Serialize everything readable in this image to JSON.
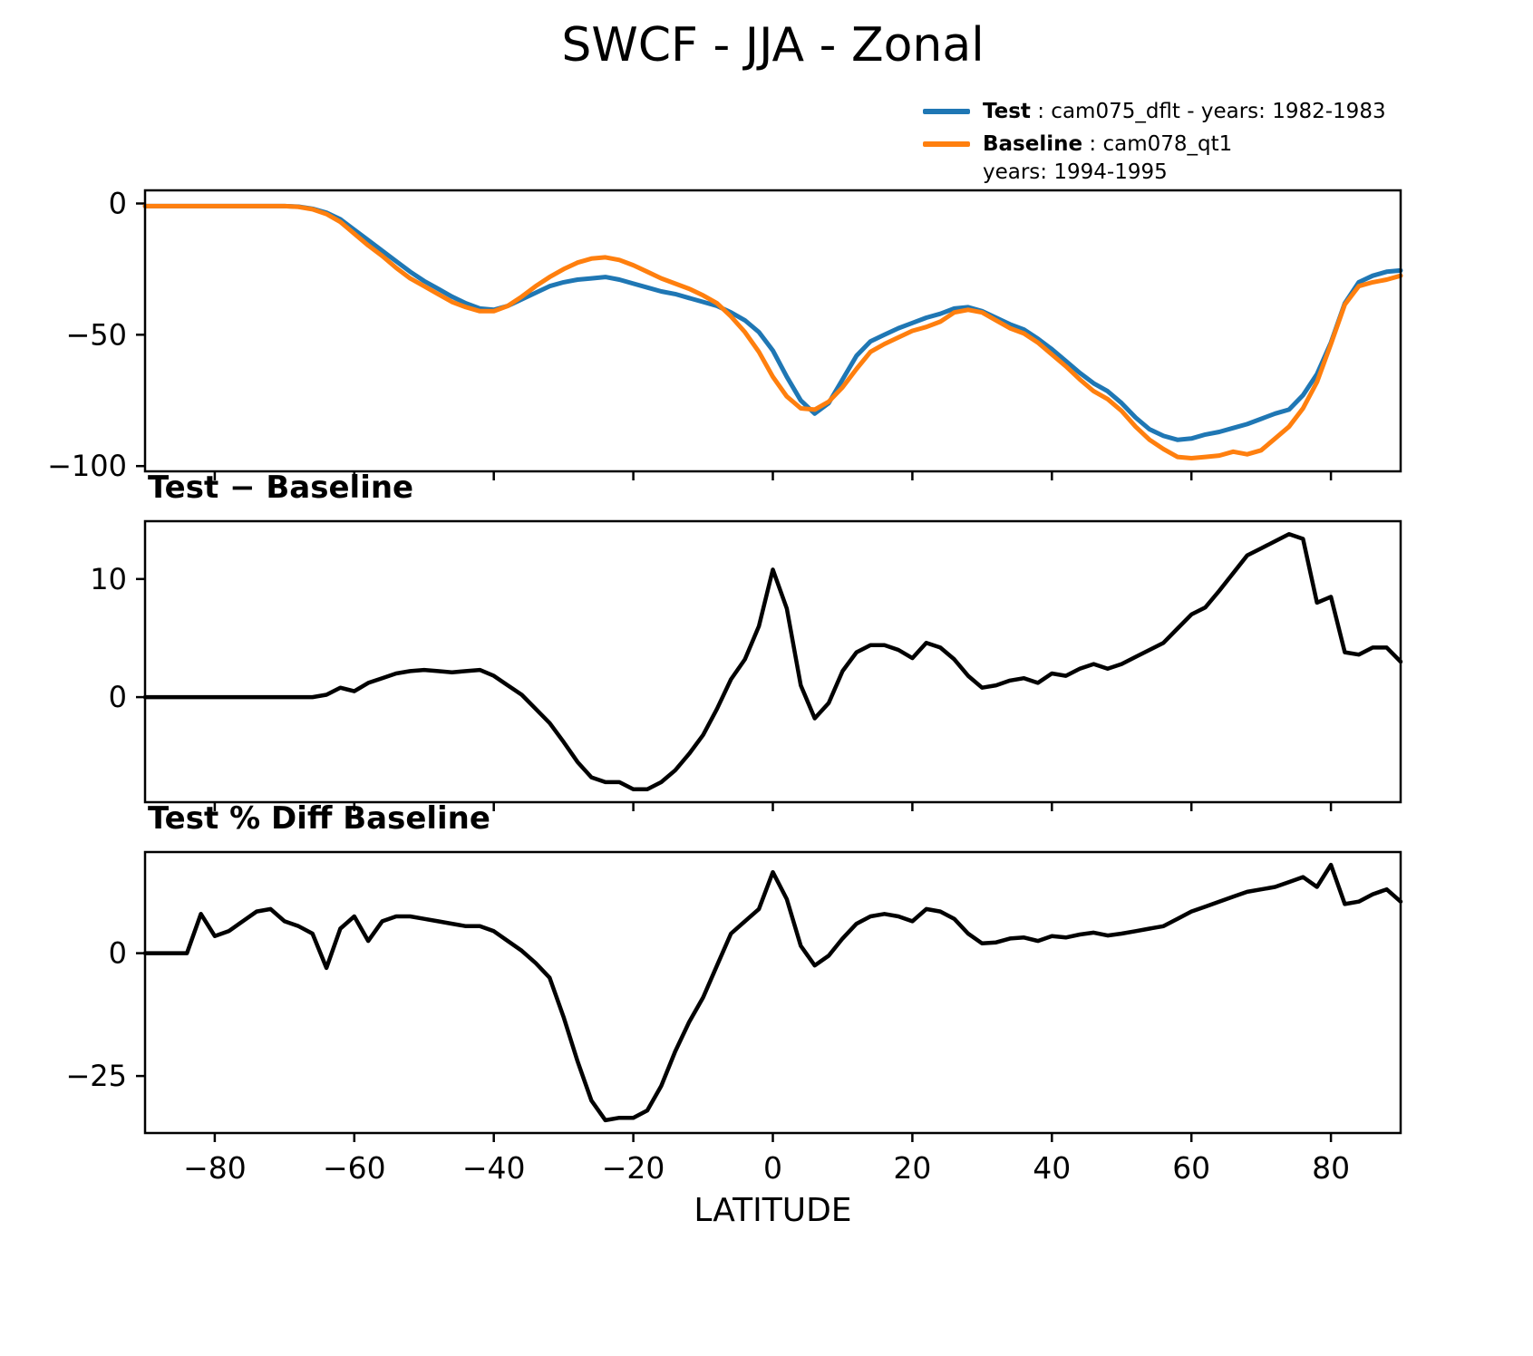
{
  "figure": {
    "background": "#ffffff",
    "axis_color": "#000000"
  },
  "legend": {
    "entries": [
      {
        "name": "test",
        "bold": "Test",
        "rest": " : cam075_dflt - years: 1982-1983",
        "line2": "",
        "color": "#1f77b4"
      },
      {
        "name": "baseline",
        "bold": "Baseline",
        "rest": " : cam078_qt1",
        "line2": "years: 1994-1995",
        "color": "#ff7f0e"
      }
    ]
  },
  "chart_data": {
    "type": "line",
    "title": "SWCF - JJA - Zonal",
    "xlabel": "LATITUDE",
    "xlim": [
      -90,
      90
    ],
    "xticks": [
      -80,
      -60,
      -40,
      -20,
      0,
      20,
      40,
      60,
      80
    ],
    "grid": false,
    "legend_position": "upper-right-above-axes",
    "x": [
      -90,
      -88,
      -86,
      -84,
      -82,
      -80,
      -78,
      -76,
      -74,
      -72,
      -70,
      -68,
      -66,
      -64,
      -62,
      -60,
      -58,
      -56,
      -54,
      -52,
      -50,
      -48,
      -46,
      -44,
      -42,
      -40,
      -38,
      -36,
      -34,
      -32,
      -30,
      -28,
      -26,
      -24,
      -22,
      -20,
      -18,
      -16,
      -14,
      -12,
      -10,
      -8,
      -6,
      -4,
      -2,
      0,
      2,
      4,
      6,
      8,
      10,
      12,
      14,
      16,
      18,
      20,
      22,
      24,
      26,
      28,
      30,
      32,
      34,
      36,
      38,
      40,
      42,
      44,
      46,
      48,
      50,
      52,
      54,
      56,
      58,
      60,
      62,
      64,
      66,
      68,
      70,
      72,
      74,
      76,
      78,
      80,
      82,
      84,
      86,
      88,
      90
    ],
    "panels": [
      {
        "name": "swcf",
        "title": "SWCF - JJA - Zonal",
        "ylim": [
          -102,
          5
        ],
        "yticks": [
          0,
          -50,
          -100
        ],
        "show_x_labels": false,
        "series": [
          {
            "name": "Test",
            "color": "#1f77b4",
            "width": 5,
            "values": [
              -1,
              -1,
              -1,
              -1,
              -1,
              -1,
              -1,
              -1,
              -1,
              -1,
              -1,
              -1.2,
              -2,
              -3.5,
              -6,
              -10,
              -14,
              -18,
              -22,
              -26,
              -29.5,
              -32.5,
              -35.5,
              -38,
              -40,
              -40.5,
              -39,
              -36.5,
              -34,
              -31.5,
              -30,
              -29,
              -28.5,
              -28,
              -29,
              -30.5,
              -32,
              -33.5,
              -34.5,
              -36,
              -37.5,
              -39,
              -41.5,
              -44.5,
              -49,
              -56,
              -66,
              -75,
              -80,
              -76,
              -67,
              -58,
              -52.5,
              -50,
              -47.5,
              -45.5,
              -43.5,
              -42,
              -40,
              -39.5,
              -41,
              -43.5,
              -46,
              -48,
              -51.5,
              -55.5,
              -60,
              -64.5,
              -68.5,
              -71.5,
              -76,
              -81.5,
              -86,
              -88.5,
              -90,
              -89.5,
              -88,
              -87,
              -85.5,
              -84,
              -82,
              -80,
              -78.5,
              -73,
              -65,
              -53,
              -38,
              -30,
              -27.5,
              -26,
              -25.5
            ]
          },
          {
            "name": "Baseline",
            "color": "#ff7f0e",
            "width": 5,
            "values": [
              -1,
              -1,
              -1,
              -1,
              -1,
              -1,
              -1,
              -1,
              -1,
              -1,
              -1,
              -1.3,
              -2.2,
              -4,
              -7,
              -11.5,
              -16,
              -20,
              -24.5,
              -28.5,
              -31.5,
              -34.5,
              -37.5,
              -39.5,
              -41,
              -41,
              -39,
              -35.5,
              -31.5,
              -28,
              -25,
              -22.5,
              -21,
              -20.5,
              -21.5,
              -23.5,
              -26,
              -28.5,
              -30.5,
              -32.5,
              -35,
              -38,
              -43,
              -49,
              -56.5,
              -66,
              -73.5,
              -78,
              -78.5,
              -75.5,
              -70,
              -63,
              -56.5,
              -53.5,
              -51,
              -48.5,
              -47,
              -45,
              -41.5,
              -40.5,
              -41.5,
              -44.5,
              -47.5,
              -49.5,
              -53,
              -57.5,
              -62,
              -67,
              -71.5,
              -74.5,
              -79,
              -85,
              -90,
              -93.5,
              -96.5,
              -97,
              -96.5,
              -96,
              -94.5,
              -95.5,
              -94,
              -89.5,
              -85,
              -78,
              -68,
              -53.5,
              -38.5,
              -31.5,
              -30,
              -29,
              -27.5
            ]
          }
        ]
      },
      {
        "name": "diff",
        "title": "Test − Baseline",
        "ylim": [
          -8.9,
          14.9
        ],
        "yticks": [
          10,
          0
        ],
        "show_x_labels": false,
        "series": [
          {
            "name": "Test - Baseline",
            "color": "#000000",
            "width": 4.5,
            "values": [
              0,
              0,
              0,
              0,
              0,
              0,
              0,
              0,
              0,
              0,
              0,
              0,
              0,
              0.2,
              0.8,
              0.5,
              1.2,
              1.6,
              2,
              2.2,
              2.3,
              2.2,
              2.1,
              2.2,
              2.3,
              1.8,
              1,
              0.2,
              -1,
              -2.2,
              -3.8,
              -5.5,
              -6.8,
              -7.2,
              -7.2,
              -7.8,
              -7.8,
              -7.2,
              -6.2,
              -4.8,
              -3.2,
              -1,
              1.5,
              3.2,
              6,
              10.8,
              7.5,
              1,
              -1.8,
              -0.5,
              2.2,
              3.8,
              4.4,
              4.4,
              4,
              3.3,
              4.6,
              4.2,
              3.2,
              1.8,
              0.8,
              1,
              1.4,
              1.6,
              1.2,
              2,
              1.8,
              2.4,
              2.8,
              2.4,
              2.8,
              3.4,
              4,
              4.6,
              5.8,
              7,
              7.6,
              9,
              10.5,
              12,
              12.6,
              13.2,
              13.8,
              13.4,
              8,
              8.5,
              3.8,
              3.6,
              4.2,
              4.2,
              3
            ]
          }
        ]
      },
      {
        "name": "pctdiff",
        "title": "Test % Diff Baseline",
        "ylim": [
          -36.6,
          20.6
        ],
        "yticks": [
          0,
          -25
        ],
        "show_x_labels": true,
        "series": [
          {
            "name": "Test % Diff Baseline",
            "color": "#000000",
            "width": 4.5,
            "values": [
              0,
              0,
              0,
              0,
              8,
              3.5,
              4.5,
              6.5,
              8.5,
              9,
              6.5,
              5.5,
              4,
              -3,
              5,
              7.5,
              2.5,
              6.5,
              7.5,
              7.5,
              7,
              6.5,
              6,
              5.5,
              5.5,
              4.5,
              2.5,
              0.5,
              -2,
              -5,
              -13,
              -22,
              -30,
              -34,
              -33.5,
              -33.5,
              -32,
              -27,
              -20,
              -14,
              -9,
              -2.5,
              4,
              6.5,
              9,
              16.5,
              11,
              1.5,
              -2.5,
              -0.5,
              3,
              6,
              7.5,
              8,
              7.5,
              6.5,
              9,
              8.5,
              7,
              4,
              2,
              2.2,
              3,
              3.2,
              2.5,
              3.5,
              3.2,
              3.8,
              4.2,
              3.6,
              4,
              4.5,
              5,
              5.5,
              7,
              8.5,
              9.5,
              10.5,
              11.5,
              12.5,
              13,
              13.5,
              14.5,
              15.5,
              13.5,
              18,
              10,
              10.5,
              12,
              13,
              10.5
            ]
          }
        ]
      }
    ]
  }
}
